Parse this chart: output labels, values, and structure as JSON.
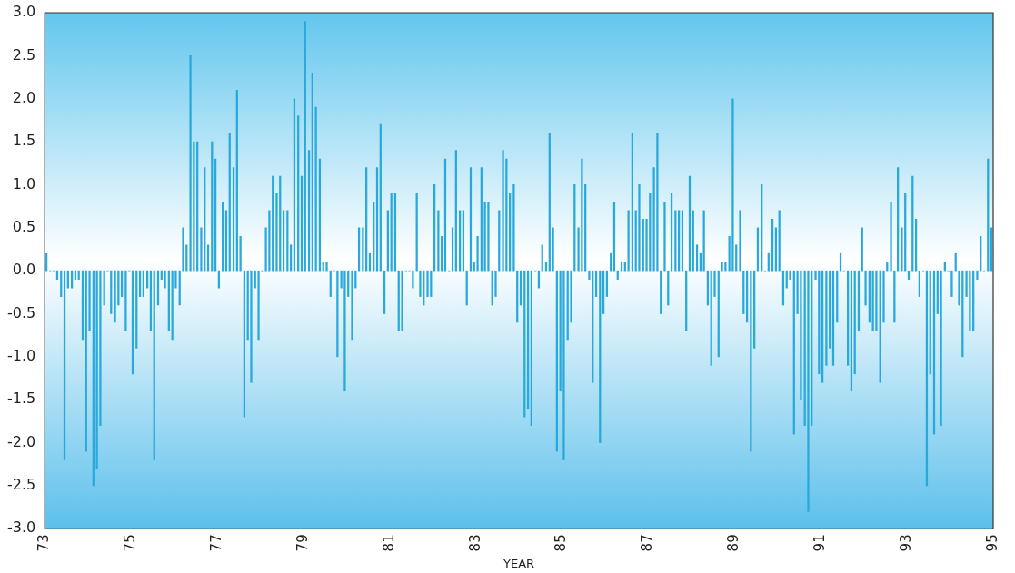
{
  "chart_data": {
    "type": "bar",
    "xlabel": "YEAR",
    "color": "#29a8dc",
    "xlim": [
      1973,
      1995
    ],
    "xticks": [
      {
        "value": 1973,
        "label": "73"
      },
      {
        "value": 1975,
        "label": "75"
      },
      {
        "value": 1977,
        "label": "77"
      },
      {
        "value": 1979,
        "label": "79"
      },
      {
        "value": 1981,
        "label": "81"
      },
      {
        "value": 1983,
        "label": "83"
      },
      {
        "value": 1985,
        "label": "85"
      },
      {
        "value": 1987,
        "label": "87"
      },
      {
        "value": 1989,
        "label": "89"
      },
      {
        "value": 1991,
        "label": "91"
      },
      {
        "value": 1993,
        "label": "93"
      },
      {
        "value": 1995,
        "label": "95"
      }
    ],
    "ylim": [
      -3,
      3
    ],
    "yticks": [
      {
        "value": -3,
        "label": "-3.0"
      },
      {
        "value": -2.5,
        "label": "-2.5"
      },
      {
        "value": -2,
        "label": "-2.0"
      },
      {
        "value": -1.5,
        "label": "-1.5"
      },
      {
        "value": -1,
        "label": "-1.0"
      },
      {
        "value": -0.5,
        "label": "-0.5"
      },
      {
        "value": 0,
        "label": "0.0"
      },
      {
        "value": 0.5,
        "label": "0.5"
      },
      {
        "value": 1,
        "label": "1.0"
      },
      {
        "value": 1.5,
        "label": "1.5"
      },
      {
        "value": 2,
        "label": "2.0"
      },
      {
        "value": 2.5,
        "label": "2.5"
      },
      {
        "value": 3,
        "label": "3.0"
      }
    ],
    "x": [
      1973.04,
      1973.13,
      1973.21,
      1973.29,
      1973.38,
      1973.46,
      1973.54,
      1973.63,
      1973.71,
      1973.79,
      1973.88,
      1973.96,
      1974.04,
      1974.13,
      1974.21,
      1974.29,
      1974.38,
      1974.46,
      1974.54,
      1974.63,
      1974.71,
      1974.79,
      1974.88,
      1974.96,
      1975.04,
      1975.13,
      1975.21,
      1975.29,
      1975.38,
      1975.46,
      1975.54,
      1975.63,
      1975.71,
      1975.79,
      1975.88,
      1975.96,
      1976.04,
      1976.13,
      1976.21,
      1976.29,
      1976.38,
      1976.46,
      1976.54,
      1976.63,
      1976.71,
      1976.79,
      1976.88,
      1976.96,
      1977.04,
      1977.13,
      1977.21,
      1977.29,
      1977.38,
      1977.46,
      1977.54,
      1977.63,
      1977.71,
      1977.79,
      1977.88,
      1977.96,
      1978.04,
      1978.13,
      1978.21,
      1978.29,
      1978.38,
      1978.46,
      1978.54,
      1978.63,
      1978.71,
      1978.79,
      1978.88,
      1978.96,
      1979.04,
      1979.13,
      1979.21,
      1979.29,
      1979.38,
      1979.46,
      1979.54,
      1979.63,
      1979.71,
      1979.79,
      1979.88,
      1979.96,
      1980.04,
      1980.13,
      1980.21,
      1980.29,
      1980.38,
      1980.46,
      1980.54,
      1980.63,
      1980.71,
      1980.79,
      1980.88,
      1980.96,
      1981.04,
      1981.13,
      1981.21,
      1981.29,
      1981.38,
      1981.46,
      1981.54,
      1981.63,
      1981.71,
      1981.79,
      1981.88,
      1981.96,
      1982.04,
      1982.13,
      1982.21,
      1982.29,
      1982.38,
      1982.46,
      1982.54,
      1982.63,
      1982.71,
      1982.79,
      1982.88,
      1982.96,
      1983.04,
      1983.13,
      1983.21,
      1983.29,
      1983.38,
      1983.46,
      1983.54,
      1983.63,
      1983.71,
      1983.79,
      1983.88,
      1983.96,
      1984.04,
      1984.13,
      1984.21,
      1984.29,
      1984.38,
      1984.46,
      1984.54,
      1984.63,
      1984.71,
      1984.79,
      1984.88,
      1984.96,
      1985.04,
      1985.13,
      1985.21,
      1985.29,
      1985.38,
      1985.46,
      1985.54,
      1985.63,
      1985.71,
      1985.79,
      1985.88,
      1985.96,
      1986.04,
      1986.13,
      1986.21,
      1986.29,
      1986.38,
      1986.46,
      1986.54,
      1986.63,
      1986.71,
      1986.79,
      1986.88,
      1986.96,
      1987.04,
      1987.13,
      1987.21,
      1987.29,
      1987.38,
      1987.46,
      1987.54,
      1987.63,
      1987.71,
      1987.79,
      1987.88,
      1987.96,
      1988.04,
      1988.13,
      1988.21,
      1988.29,
      1988.38,
      1988.46,
      1988.54,
      1988.63,
      1988.71,
      1988.79,
      1988.88,
      1988.96,
      1989.04,
      1989.13,
      1989.21,
      1989.29,
      1989.38,
      1989.46,
      1989.54,
      1989.63,
      1989.71,
      1989.79,
      1989.88,
      1989.96,
      1990.04,
      1990.13,
      1990.21,
      1990.29,
      1990.38,
      1990.46,
      1990.54,
      1990.63,
      1990.71,
      1990.79,
      1990.88,
      1990.96,
      1991.04,
      1991.13,
      1991.21,
      1991.29,
      1991.38,
      1991.46,
      1991.54,
      1991.63,
      1991.71,
      1991.79,
      1991.88,
      1991.96,
      1992.04,
      1992.13,
      1992.21,
      1992.29,
      1992.38,
      1992.46,
      1992.54,
      1992.63,
      1992.71,
      1992.79,
      1992.88,
      1992.96,
      1993.04,
      1993.13,
      1993.21,
      1993.29,
      1993.38,
      1993.46,
      1993.54,
      1993.63,
      1993.71,
      1993.79,
      1993.88,
      1993.96,
      1994.04,
      1994.13,
      1994.21,
      1994.29,
      1994.38,
      1994.46,
      1994.54,
      1994.63,
      1994.71,
      1994.79,
      1994.88,
      1994.96
    ],
    "values": [
      0.2,
      0,
      0,
      -0.1,
      -0.3,
      -2.2,
      -0.2,
      -0.2,
      -0.1,
      -0.1,
      -0.8,
      -2.1,
      -0.7,
      -2.5,
      -2.3,
      -1.8,
      -0.4,
      0,
      -0.5,
      -0.6,
      -0.4,
      -0.3,
      -0.7,
      0,
      -1.2,
      -0.9,
      -0.3,
      -0.3,
      -0.2,
      -0.7,
      -2.2,
      -0.4,
      -0.1,
      -0.2,
      -0.7,
      -0.8,
      -0.2,
      -0.4,
      0.5,
      0.3,
      2.5,
      1.5,
      1.5,
      0.5,
      1.2,
      0.3,
      1.5,
      1.3,
      -0.2,
      0.8,
      0.7,
      1.6,
      1.2,
      2.1,
      0.4,
      -1.7,
      -0.8,
      -1.3,
      -0.2,
      -0.8,
      0,
      0.5,
      0.7,
      1.1,
      0.9,
      1.1,
      0.7,
      0.7,
      0.3,
      2.0,
      1.8,
      1.1,
      2.9,
      1.4,
      2.3,
      1.9,
      1.3,
      0.1,
      0.1,
      -0.3,
      0,
      -1.0,
      -0.2,
      -1.4,
      -0.3,
      -0.8,
      -0.2,
      0.5,
      0.5,
      1.2,
      0.2,
      0.8,
      1.2,
      1.7,
      -0.5,
      0.7,
      0.9,
      0.9,
      -0.7,
      -0.7,
      0,
      0,
      -0.2,
      0.9,
      -0.3,
      -0.4,
      -0.3,
      -0.3,
      1.0,
      0.7,
      0.4,
      1.3,
      0,
      0.5,
      1.4,
      0.7,
      0.7,
      -0.4,
      1.2,
      0.1,
      0.4,
      1.2,
      0.8,
      0.8,
      -0.4,
      -0.3,
      0.7,
      1.4,
      1.3,
      0.9,
      1.0,
      -0.6,
      -0.4,
      -1.7,
      -1.6,
      -1.8,
      0,
      -0.2,
      0.3,
      0.1,
      1.6,
      0.5,
      -2.1,
      -1.4,
      -2.2,
      -0.8,
      -0.6,
      1.0,
      0.5,
      1.3,
      1.0,
      -0.1,
      -1.3,
      -0.3,
      -2.0,
      -0.5,
      -0.3,
      0.2,
      0.8,
      -0.1,
      0.1,
      0.1,
      0.7,
      1.6,
      0.7,
      1.0,
      0.6,
      0.6,
      0.9,
      1.2,
      1.6,
      -0.5,
      0.8,
      -0.4,
      0.9,
      0.7,
      0.7,
      0.7,
      -0.7,
      1.1,
      0.7,
      0.3,
      0.2,
      0.7,
      -0.4,
      -1.1,
      -0.3,
      -1.0,
      0.1,
      0.1,
      0.4,
      2.0,
      0.3,
      0.7,
      -0.5,
      -0.6,
      -2.1,
      -0.9,
      0.5,
      1.0,
      0,
      0.2,
      0.6,
      0.5,
      0.7,
      -0.4,
      -0.2,
      -0.1,
      -1.9,
      -0.5,
      -1.5,
      -1.8,
      -2.8,
      -1.8,
      -0.1,
      -1.2,
      -1.3,
      -1.1,
      -0.9,
      -1.1,
      -0.6,
      0.2,
      0,
      -1.1,
      -1.4,
      -1.2,
      -0.7,
      0.5,
      -0.4,
      -0.6,
      -0.7,
      -0.7,
      -1.3,
      -0.6,
      0.1,
      0.8,
      -0.6,
      1.2,
      0.5,
      0.9,
      -0.1,
      1.1,
      0.6,
      -0.3,
      0,
      -2.5,
      -1.2,
      -1.9,
      -0.5,
      -1.8,
      0.1,
      0,
      -0.3,
      0.2,
      -0.4,
      -1.0,
      -0.3,
      -0.7,
      -0.7,
      -0.1,
      0.4,
      0,
      1.3,
      0.5
    ]
  }
}
